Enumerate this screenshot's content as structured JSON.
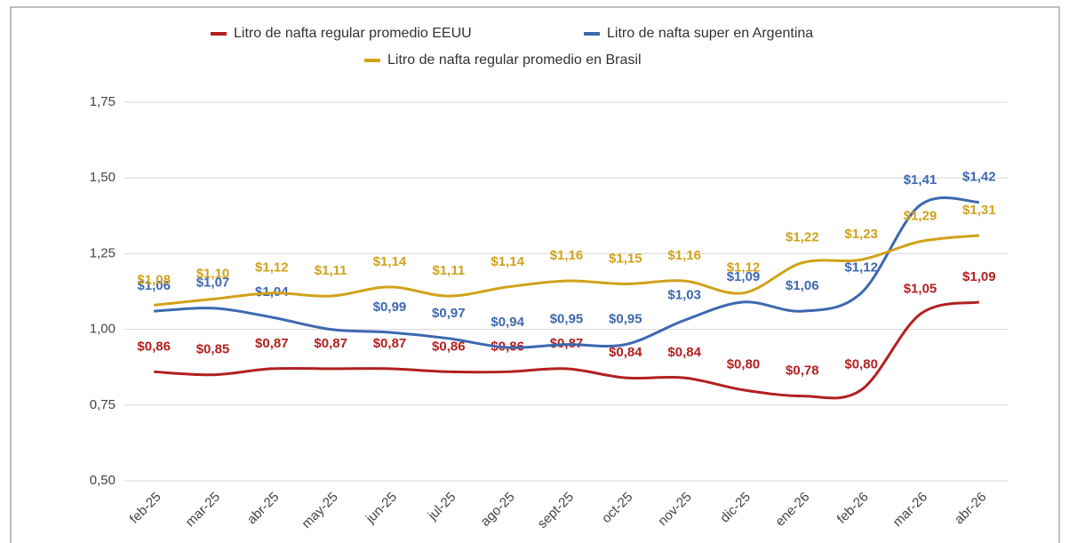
{
  "chart_data": {
    "type": "line",
    "categories": [
      "feb-25",
      "mar-25",
      "abr-25",
      "may-25",
      "jun-25",
      "jul-25",
      "ago-25",
      "sept-25",
      "oct-25",
      "nov-25",
      "dic-25",
      "ene-26",
      "feb-26",
      "mar-26",
      "abr-26"
    ],
    "series": [
      {
        "name": "Litro de nafta regular promedio EEUU",
        "color": "#b3201f",
        "values": [
          0.86,
          0.85,
          0.87,
          0.87,
          0.87,
          0.86,
          0.86,
          0.87,
          0.84,
          0.84,
          0.8,
          0.78,
          0.8,
          1.05,
          1.09
        ],
        "value_labels": [
          "$0,86",
          "$0,85",
          "$0,87",
          "$0,87",
          "$0,87",
          "$0,86",
          "$0,86",
          "$0,87",
          "$0,84",
          "$0,84",
          "$0,80",
          "$0,78",
          "$0,80",
          "$1,05",
          "$1,09"
        ]
      },
      {
        "name": "Litro de nafta super en Argentina",
        "color": "#3d68b0",
        "values": [
          1.06,
          1.07,
          1.04,
          1.0,
          0.99,
          0.97,
          0.94,
          0.95,
          0.95,
          1.03,
          1.09,
          1.06,
          1.12,
          1.41,
          1.42
        ],
        "value_labels": [
          "$1,06",
          "$1,07",
          "$1,04",
          null,
          "$0,99",
          "$0,97",
          "$0,94",
          "$0,95",
          "$0,95",
          "$1,03",
          "$1,09",
          "$1,06",
          "$1,12",
          "$1,41",
          "$1,42"
        ]
      },
      {
        "name": "Litro de nafta regular promedio en Brasil",
        "color": "#d1a21a",
        "values": [
          1.08,
          1.1,
          1.12,
          1.11,
          1.14,
          1.11,
          1.14,
          1.16,
          1.15,
          1.16,
          1.12,
          1.22,
          1.23,
          1.29,
          1.31
        ],
        "value_labels": [
          "$1,08",
          "$1,10",
          "$1,12",
          "$1,11",
          "$1,14",
          "$1,11",
          "$1,14",
          "$1,16",
          "$1,15",
          "$1,16",
          "$1,12",
          "$1,22",
          "$1,23",
          "$1,29",
          "$1,31"
        ]
      }
    ],
    "ylim": [
      0.5,
      1.75
    ],
    "yticks": [
      {
        "value": 0.5,
        "label": "0,50"
      },
      {
        "value": 0.75,
        "label": "0,75"
      },
      {
        "value": 1,
        "label": "1,00"
      },
      {
        "value": 1.25,
        "label": "1,25"
      },
      {
        "value": 1.5,
        "label": "1,50"
      },
      {
        "value": 1.75,
        "label": "1,75"
      }
    ],
    "grid": true,
    "legend": "top"
  }
}
